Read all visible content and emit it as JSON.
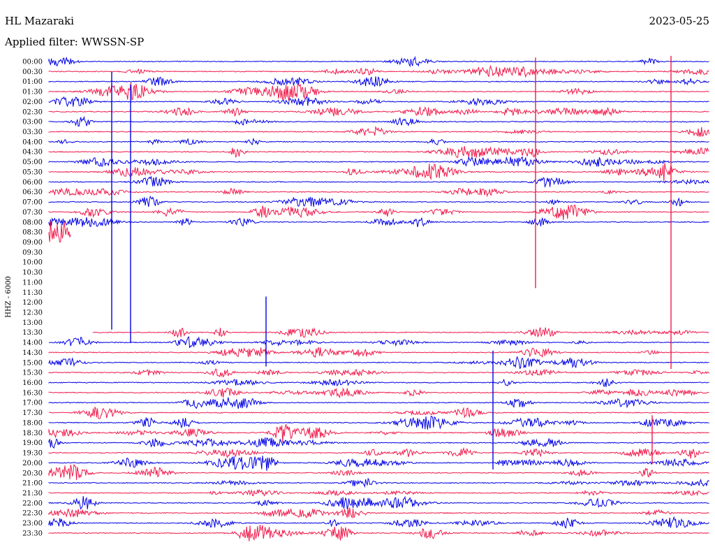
{
  "header": {
    "station": "HL Mazaraki",
    "date": "2023-05-25",
    "filter": "Applied filter: WWSSN-SP"
  },
  "chart_data": {
    "type": "line",
    "title": "HL Mazaraki",
    "ylabel": "HHZ - 6000",
    "colors": [
      "#0000e6",
      "#f0194b"
    ],
    "rows": [
      "00:00",
      "00:30",
      "01:00",
      "01:30",
      "02:00",
      "02:30",
      "03:00",
      "03:30",
      "04:00",
      "04:30",
      "05:00",
      "05:30",
      "06:00",
      "06:30",
      "07:00",
      "07:30",
      "08:00",
      "08:30",
      "09:00",
      "09:30",
      "10:00",
      "10:30",
      "11:00",
      "11:30",
      "12:00",
      "12:30",
      "13:00",
      "13:30",
      "14:00",
      "14:30",
      "15:00",
      "15:30",
      "16:00",
      "16:30",
      "17:00",
      "17:30",
      "18:00",
      "18:30",
      "19:00",
      "19:30",
      "20:00",
      "20:30",
      "21:00",
      "21:30",
      "22:00",
      "22:30",
      "23:00",
      "23:30"
    ],
    "row_start_min": [
      0,
      0,
      0,
      0,
      0,
      0,
      0,
      0,
      0,
      0,
      0,
      0,
      0,
      0,
      0,
      0,
      0,
      0,
      null,
      null,
      null,
      null,
      null,
      null,
      null,
      null,
      null,
      2,
      0,
      0,
      0,
      0,
      0,
      0,
      0,
      0,
      0,
      0,
      0,
      0,
      0,
      0,
      0,
      0,
      0,
      0,
      0,
      0
    ],
    "row_end_min": [
      30,
      30,
      30,
      30,
      30,
      30,
      30,
      30,
      30,
      30,
      30,
      30,
      30,
      30,
      30,
      30,
      30,
      1,
      null,
      null,
      null,
      null,
      null,
      null,
      null,
      null,
      null,
      30,
      30,
      30,
      30,
      30,
      30,
      30,
      30,
      30,
      30,
      30,
      30,
      30,
      30,
      30,
      30,
      30,
      30,
      30,
      30,
      30
    ]
  }
}
